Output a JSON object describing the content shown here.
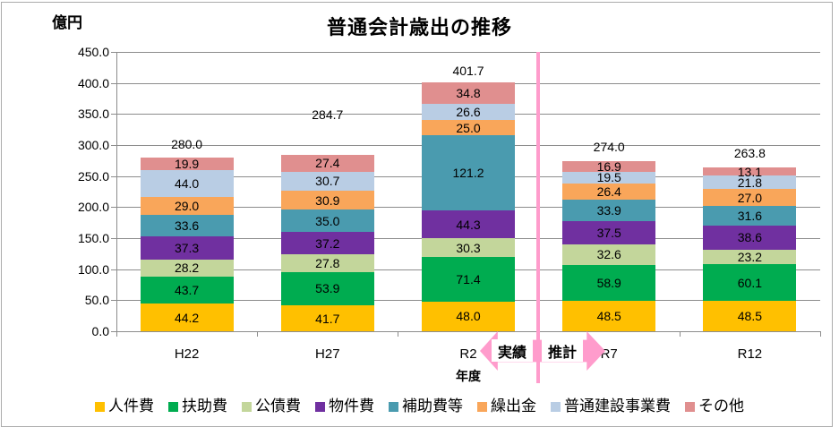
{
  "frame": {
    "border_color": "#ABABAB",
    "background": "#FFFFFF"
  },
  "colors": {
    "grid": "#8C8C8C",
    "axis": "#8C8C8C",
    "text": "#000000",
    "accent_pink": "#FF9CCC"
  },
  "annotations": {
    "actual_label": "実績",
    "forecast_label": "推計"
  },
  "chart_data": {
    "type": "bar",
    "stacked": true,
    "title": "普通会計歳出の推移",
    "unit_label": "億円",
    "xlabel": "年度",
    "categories": [
      "H22",
      "H27",
      "R2",
      "R7",
      "R12"
    ],
    "series": [
      {
        "name": "人件費",
        "color": "#FFC000",
        "values": [
          44.2,
          41.7,
          48.0,
          48.5,
          48.5
        ]
      },
      {
        "name": "扶助費",
        "color": "#00AC50",
        "values": [
          43.7,
          53.9,
          71.4,
          58.9,
          60.1
        ]
      },
      {
        "name": "公債費",
        "color": "#C3D69B",
        "values": [
          28.2,
          27.8,
          30.3,
          32.6,
          23.2
        ]
      },
      {
        "name": "物件費",
        "color": "#7030A0",
        "values": [
          37.3,
          37.2,
          44.3,
          37.5,
          38.6
        ]
      },
      {
        "name": "補助費等",
        "color": "#4A9BAF",
        "values": [
          33.6,
          35.0,
          121.2,
          33.9,
          31.6
        ]
      },
      {
        "name": "繰出金",
        "color": "#F9A65A",
        "values": [
          29.0,
          30.9,
          25.0,
          26.4,
          27.0
        ]
      },
      {
        "name": "普通建設事業費",
        "color": "#B9CDE4",
        "values": [
          44.0,
          30.7,
          26.6,
          19.5,
          21.8
        ]
      },
      {
        "name": "その他",
        "color": "#E08F8F",
        "values": [
          19.9,
          27.4,
          34.8,
          16.9,
          13.1
        ]
      }
    ],
    "totals": [
      "280.0",
      "284.7",
      "401.7",
      "274.0",
      "263.8"
    ],
    "y_ticks": [
      450.0,
      400.0,
      350.0,
      300.0,
      250.0,
      200.0,
      150.0,
      100.0,
      50.0,
      0.0
    ],
    "ylim": [
      0,
      450
    ],
    "grid": true,
    "legend_position": "bottom",
    "divider_after_category": "R2",
    "total_label_offsets": [
      15,
      45,
      13,
      16,
      16
    ]
  }
}
